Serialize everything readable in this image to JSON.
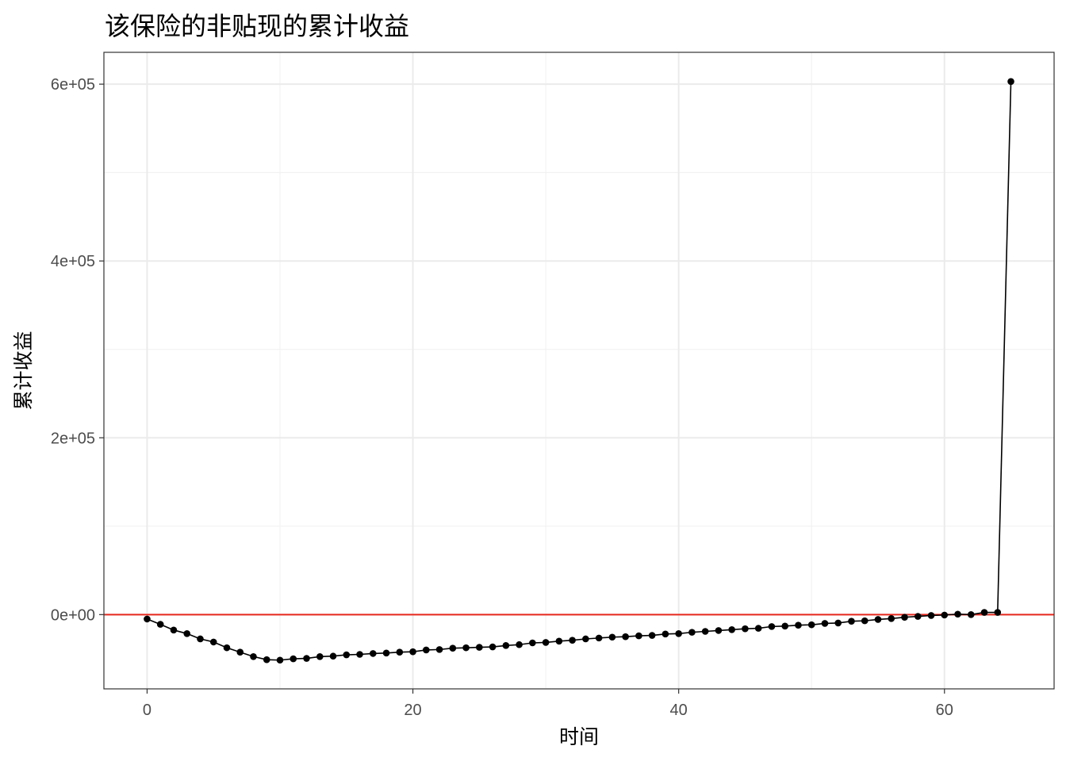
{
  "chart_data": {
    "type": "line",
    "title": "该保险的非贴现的累计收益",
    "xlabel": "时间",
    "ylabel": "累计收益",
    "xlim": [
      -3.25,
      68.25
    ],
    "ylim": [
      -84000,
      636000
    ],
    "x_ticks": [
      0,
      20,
      40,
      60
    ],
    "x_tick_labels": [
      "0",
      "20",
      "40",
      "60"
    ],
    "y_ticks": [
      0,
      200000,
      400000,
      600000
    ],
    "y_tick_labels": [
      "0e+00",
      "2e+05",
      "4e+05",
      "6e+05"
    ],
    "grid": true,
    "reference_line": {
      "y": 0,
      "color": "#e8281e"
    },
    "series": [
      {
        "color": "#000000",
        "x": [
          0,
          1,
          2,
          3,
          4,
          5,
          6,
          7,
          8,
          9,
          10,
          11,
          12,
          13,
          14,
          15,
          16,
          17,
          18,
          19,
          20,
          21,
          22,
          23,
          24,
          25,
          26,
          27,
          28,
          29,
          30,
          31,
          32,
          33,
          34,
          35,
          36,
          37,
          38,
          39,
          40,
          41,
          42,
          43,
          44,
          45,
          46,
          47,
          48,
          49,
          50,
          51,
          52,
          53,
          54,
          55,
          56,
          57,
          58,
          59,
          60,
          61,
          62,
          63,
          64,
          65
        ],
        "y": [
          -5000,
          -11000,
          -17500,
          -21500,
          -27500,
          -31000,
          -37500,
          -42500,
          -47500,
          -51000,
          -51500,
          -50000,
          -49500,
          -47500,
          -47000,
          -45500,
          -45000,
          -44000,
          -43500,
          -42500,
          -42000,
          -40000,
          -39500,
          -38000,
          -37500,
          -37000,
          -36500,
          -35000,
          -34000,
          -32000,
          -31500,
          -30000,
          -29000,
          -27500,
          -26500,
          -25500,
          -25000,
          -24000,
          -23500,
          -22000,
          -21500,
          -20000,
          -19000,
          -18000,
          -17000,
          -16000,
          -15500,
          -13500,
          -13000,
          -12000,
          -11500,
          -10000,
          -9500,
          -7500,
          -7000,
          -5500,
          -4500,
          -3000,
          -2000,
          -1000,
          -500,
          500,
          0,
          2500,
          2500,
          603000
        ]
      }
    ]
  }
}
